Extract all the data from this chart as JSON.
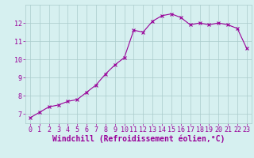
{
  "x": [
    0,
    1,
    2,
    3,
    4,
    5,
    6,
    7,
    8,
    9,
    10,
    11,
    12,
    13,
    14,
    15,
    16,
    17,
    18,
    19,
    20,
    21,
    22,
    23
  ],
  "y": [
    6.8,
    7.1,
    7.4,
    7.5,
    7.7,
    7.8,
    8.2,
    8.6,
    9.2,
    9.7,
    10.1,
    11.6,
    11.5,
    12.1,
    12.4,
    12.5,
    12.3,
    11.9,
    12.0,
    11.9,
    12.0,
    11.9,
    11.7,
    10.6
  ],
  "line_color": "#990099",
  "marker": "x",
  "marker_size": 3,
  "marker_lw": 0.8,
  "line_width": 0.8,
  "bg_color": "#d6f0f0",
  "grid_color": "#aacccc",
  "xlabel": "Windchill (Refroidissement éolien,°C)",
  "xlabel_color": "#990099",
  "xlabel_fontsize": 7,
  "tick_color": "#990099",
  "tick_fontsize": 6,
  "ylim": [
    6.5,
    13.0
  ],
  "xlim": [
    -0.5,
    23.5
  ],
  "yticks": [
    7,
    8,
    9,
    10,
    11,
    12
  ],
  "xticks": [
    0,
    1,
    2,
    3,
    4,
    5,
    6,
    7,
    8,
    9,
    10,
    11,
    12,
    13,
    14,
    15,
    16,
    17,
    18,
    19,
    20,
    21,
    22,
    23
  ]
}
